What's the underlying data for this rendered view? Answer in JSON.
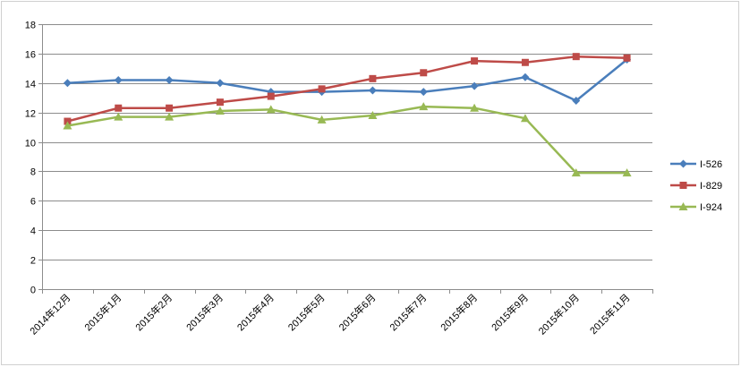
{
  "chart_data": {
    "type": "line",
    "title": "",
    "xlabel": "",
    "ylabel": "",
    "ylim": [
      0,
      18
    ],
    "yticks": [
      0,
      2,
      4,
      6,
      8,
      10,
      12,
      14,
      16,
      18
    ],
    "grid": true,
    "legend": "right",
    "categories": [
      "2014年12月",
      "2015年1月",
      "2015年2月",
      "2015年3月",
      "2015年4月",
      "2015年5月",
      "2015年6月",
      "2015年7月",
      "2015年8月",
      "2015年9月",
      "2015年10月",
      "2015年11月"
    ],
    "series": [
      {
        "name": "I-526",
        "color": "#4a7ebb",
        "marker": "diamond",
        "values": [
          14.0,
          14.2,
          14.2,
          14.0,
          13.4,
          13.4,
          13.5,
          13.4,
          13.8,
          14.4,
          12.8,
          15.6
        ]
      },
      {
        "name": "I-829",
        "color": "#be4b48",
        "marker": "square",
        "values": [
          11.4,
          12.3,
          12.3,
          12.7,
          13.1,
          13.6,
          14.3,
          14.7,
          15.5,
          15.4,
          15.8,
          15.7
        ]
      },
      {
        "name": "I-924",
        "color": "#98b954",
        "marker": "triangle",
        "values": [
          11.1,
          11.7,
          11.7,
          12.1,
          12.2,
          11.5,
          11.8,
          12.4,
          12.3,
          11.6,
          7.9,
          7.9
        ]
      }
    ]
  }
}
